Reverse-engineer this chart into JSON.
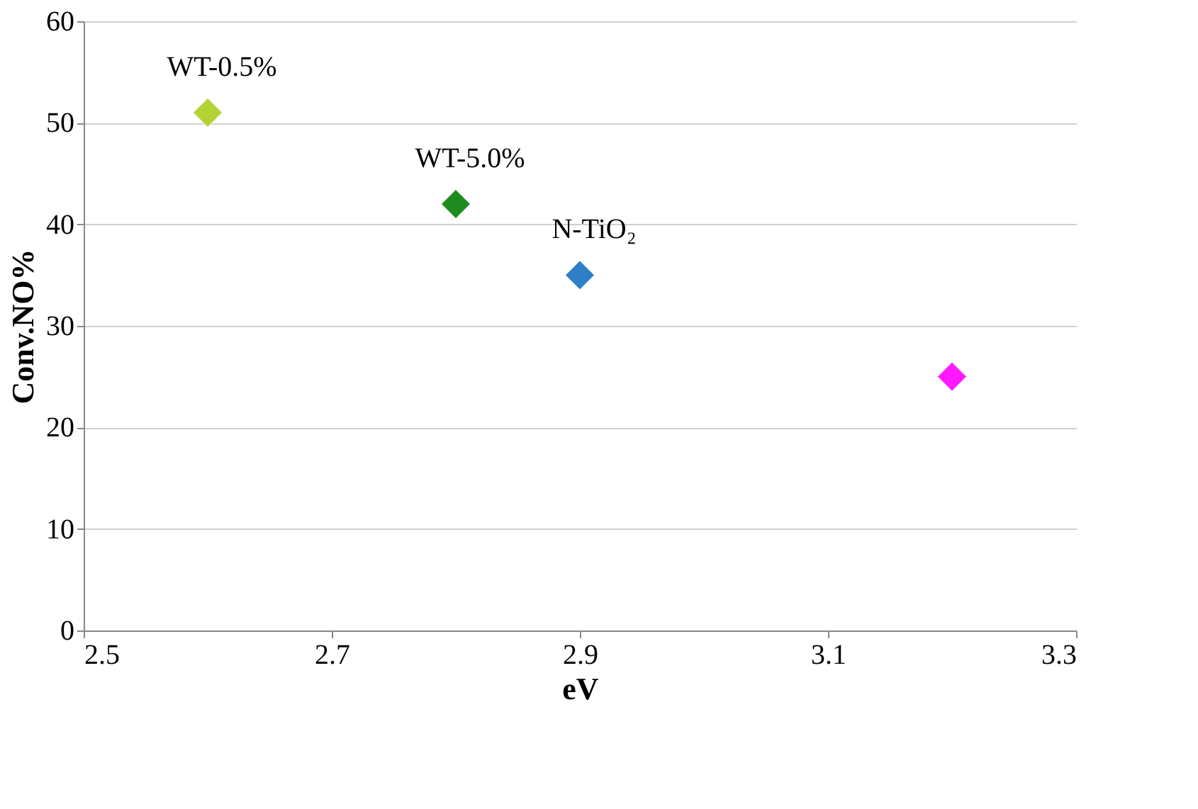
{
  "chart_data": {
    "type": "scatter",
    "xlabel": "eV",
    "ylabel": "Conv.NO%",
    "xlim": [
      2.5,
      3.3
    ],
    "xticks": [
      2.5,
      2.7,
      2.9,
      3.1,
      3.3
    ],
    "ylim": [
      0,
      60
    ],
    "yticks": [
      0,
      10,
      20,
      30,
      40,
      50,
      60
    ],
    "grid": "y",
    "legend": false,
    "marker": "diamond",
    "series": [
      {
        "name": "WT-0.5%",
        "color": "#b3d335",
        "x": [
          2.6
        ],
        "values": [
          51
        ]
      },
      {
        "name": "WT-5.0%",
        "color": "#1e8b1e",
        "x": [
          2.8
        ],
        "values": [
          42
        ]
      },
      {
        "name": "N-TiO₂",
        "color": "#2f7fc8",
        "x": [
          2.9
        ],
        "values": [
          35
        ]
      },
      {
        "color": "#ff19ff",
        "x": [
          3.2
        ],
        "values": [
          25
        ]
      }
    ]
  }
}
